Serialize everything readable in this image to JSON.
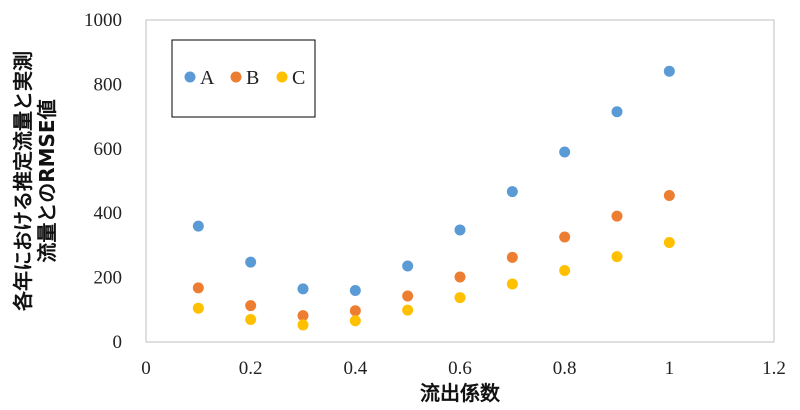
{
  "chart_data": {
    "type": "scatter",
    "title": "",
    "xlabel": "流出係数",
    "ylabel_lines": [
      "各年における推定流量と実測",
      "流量とのRMSE値"
    ],
    "xlim": [
      0,
      1.2
    ],
    "ylim": [
      0,
      1000
    ],
    "xticks": [
      0,
      0.2,
      0.4,
      0.6,
      0.8,
      1,
      1.2
    ],
    "xtick_labels": [
      "0",
      "0.2",
      "0.4",
      "0.6",
      "0.8",
      "1",
      "1.2"
    ],
    "yticks": [
      0,
      200,
      400,
      600,
      800,
      1000
    ],
    "ytick_labels": [
      "0",
      "200",
      "400",
      "600",
      "800",
      "1000"
    ],
    "grid": false,
    "legend_position": "top-left",
    "x": [
      0.1,
      0.2,
      0.3,
      0.4,
      0.5,
      0.6,
      0.7,
      0.8,
      0.9,
      1.0
    ],
    "series": [
      {
        "name": "A",
        "color": "#5b9bd5",
        "values": [
          360,
          248,
          165,
          160,
          236,
          348,
          467,
          590,
          715,
          841
        ]
      },
      {
        "name": "B",
        "color": "#ed7d31",
        "values": [
          168,
          113,
          82,
          97,
          143,
          202,
          263,
          326,
          391,
          455
        ]
      },
      {
        "name": "C",
        "color": "#ffc000",
        "values": [
          105,
          70,
          53,
          66,
          99,
          138,
          180,
          222,
          265,
          309
        ]
      }
    ]
  }
}
